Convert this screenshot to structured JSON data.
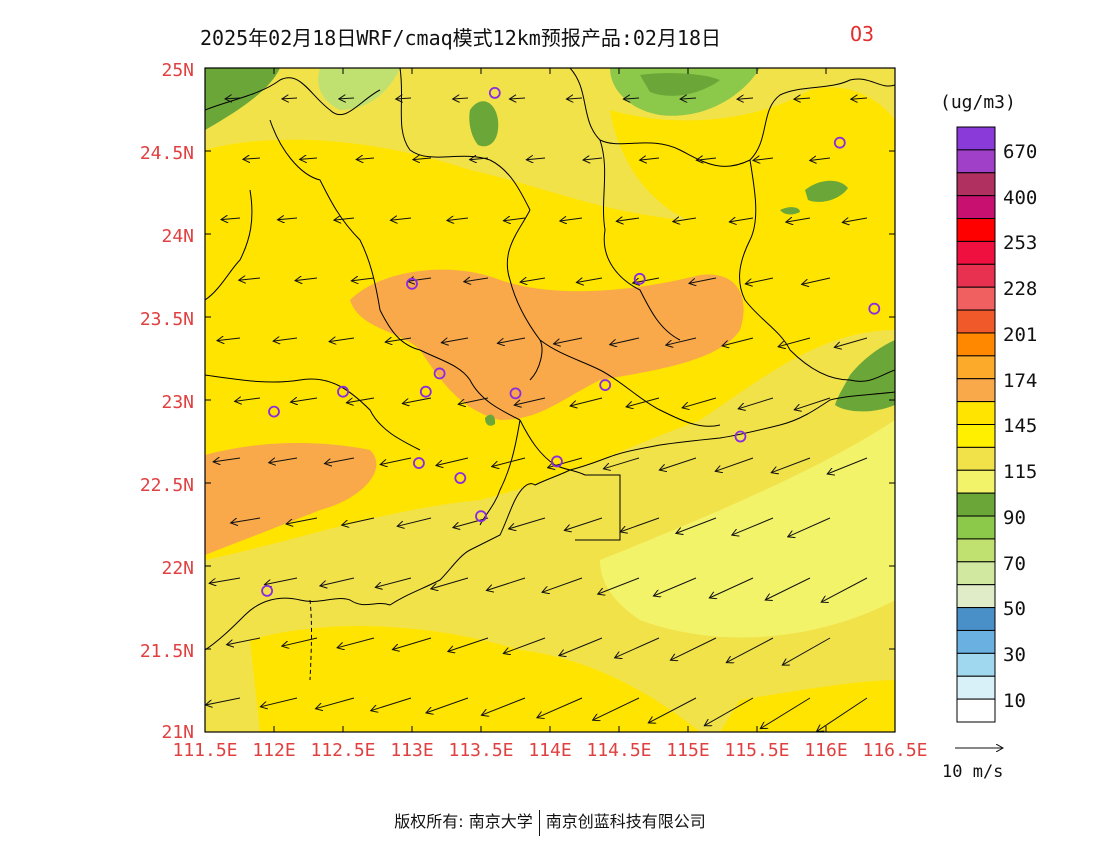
{
  "title": {
    "main": "2025年02月18日WRF/cmaq模式12km预报产品:02月18日",
    "species": "O3"
  },
  "axes": {
    "y_ticks": [
      "25N",
      "24.5N",
      "24N",
      "23.5N",
      "23N",
      "22.5N",
      "22N",
      "21.5N",
      "21N"
    ],
    "x_ticks": [
      "111.5E",
      "112E",
      "112.5E",
      "113E",
      "113.5E",
      "114E",
      "114.5E",
      "115E",
      "115.5E",
      "116E",
      "116.5E"
    ],
    "lon_range": [
      111.5,
      116.5
    ],
    "lat_range": [
      21,
      25
    ]
  },
  "colorbar": {
    "unit": "(ug/m3)",
    "labels": [
      "670",
      "400",
      "253",
      "228",
      "201",
      "174",
      "145",
      "115",
      "90",
      "70",
      "50",
      "30",
      "10"
    ],
    "colors": [
      "#8a3ad8",
      "#a040c8",
      "#b03060",
      "#c81070",
      "#ff0000",
      "#f01040",
      "#e83050",
      "#f06060",
      "#f05a2a",
      "#ff8800",
      "#fbaa2a",
      "#f9a84a",
      "#ffe400",
      "#fff000",
      "#f2e24a",
      "#f3f36a",
      "#6aa638",
      "#8cc84a",
      "#c0e070",
      "#d0e8a0",
      "#e0ecc8",
      "#4a90c8",
      "#6ab0e0",
      "#a0d8f0",
      "#d8f0f8",
      "#ffffff"
    ]
  },
  "wind_reference": {
    "label": "10 m/s"
  },
  "stations": [
    {
      "lon": 113.6,
      "lat": 24.85
    },
    {
      "lon": 116.1,
      "lat": 24.55
    },
    {
      "lon": 113.0,
      "lat": 23.7
    },
    {
      "lon": 114.65,
      "lat": 23.73
    },
    {
      "lon": 116.35,
      "lat": 23.55
    },
    {
      "lon": 112.5,
      "lat": 23.05
    },
    {
      "lon": 113.1,
      "lat": 23.05
    },
    {
      "lon": 113.2,
      "lat": 23.16
    },
    {
      "lon": 113.75,
      "lat": 23.04
    },
    {
      "lon": 114.4,
      "lat": 23.09
    },
    {
      "lon": 112.0,
      "lat": 22.93
    },
    {
      "lon": 113.05,
      "lat": 22.62
    },
    {
      "lon": 113.35,
      "lat": 22.53
    },
    {
      "lon": 114.05,
      "lat": 22.63
    },
    {
      "lon": 115.38,
      "lat": 22.78
    },
    {
      "lon": 113.5,
      "lat": 22.3
    },
    {
      "lon": 111.95,
      "lat": 21.85
    }
  ],
  "copyright": {
    "left": "版权所有: 南京大学",
    "right": "南京创蓝科技有限公司"
  }
}
